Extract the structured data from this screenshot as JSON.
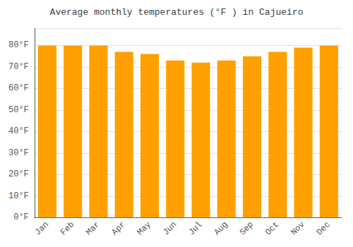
{
  "chart_data": {
    "type": "bar",
    "title": "Average monthly temperatures (°F ) in Cajueiro",
    "categories": [
      "Jan",
      "Feb",
      "Mar",
      "Apr",
      "May",
      "Jun",
      "Jul",
      "Aug",
      "Sep",
      "Oct",
      "Nov",
      "Dec"
    ],
    "values": [
      80,
      80,
      80,
      77,
      76,
      73,
      72,
      73,
      75,
      77,
      79,
      80
    ],
    "color": "#FFA000",
    "ylim": [
      0,
      88
    ],
    "yticks": [
      {
        "value": 0,
        "label": "0°F"
      },
      {
        "value": 10,
        "label": "10°F"
      },
      {
        "value": 20,
        "label": "20°F"
      },
      {
        "value": 30,
        "label": "30°F"
      },
      {
        "value": 40,
        "label": "40°F"
      },
      {
        "value": 50,
        "label": "50°F"
      },
      {
        "value": 60,
        "label": "60°F"
      },
      {
        "value": 70,
        "label": "70°F"
      },
      {
        "value": 80,
        "label": "80°F"
      }
    ],
    "grid": true
  }
}
